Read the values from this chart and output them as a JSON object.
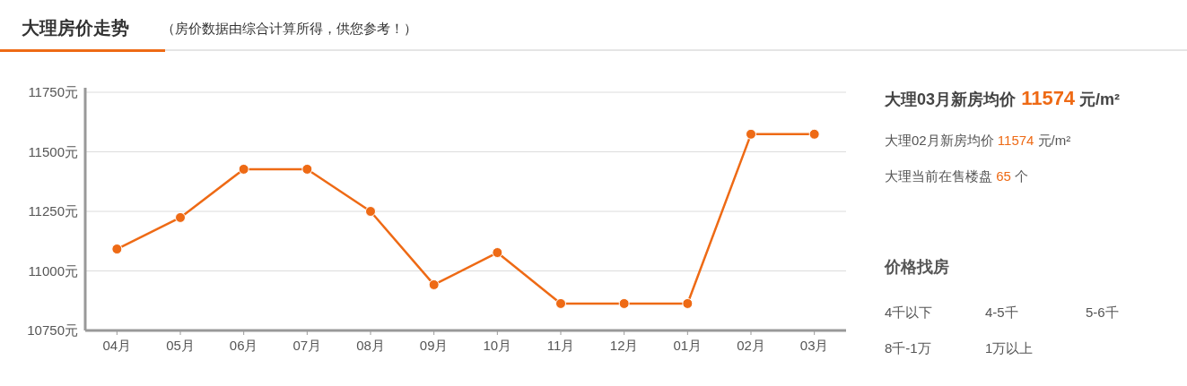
{
  "chart_data": [
    {
      "type": "line",
      "title": "大理房价走势",
      "subtitle": "（房价数据由综合计算所得，供您参考！）",
      "categories": [
        "04月",
        "05月",
        "06月",
        "07月",
        "08月",
        "09月",
        "10月",
        "11月",
        "12月",
        "01月",
        "02月",
        "03月"
      ],
      "series": [
        {
          "color": "#ee6a15",
          "values": [
            11092,
            11224,
            11427,
            11427,
            11250,
            10942,
            11077,
            10863,
            10863,
            10863,
            11574,
            11574
          ]
        }
      ],
      "ylim": [
        10750,
        11750
      ],
      "yticks": [
        {
          "value": 10750,
          "label": "10750元"
        },
        {
          "value": 11000,
          "label": "11000元"
        },
        {
          "value": 11250,
          "label": "11250元"
        },
        {
          "value": 11500,
          "label": "11500元"
        },
        {
          "value": 11750,
          "label": "11750元"
        }
      ],
      "grid": "y",
      "marker": "circle",
      "line_style": "solid"
    },
    {
      "type": "other",
      "annotations": [
        "大理03月新房均价 11574 元/m²",
        "大理02月新房均价 11574 元/m²",
        "大理当前在售楼盘 65 个",
        "价格找房",
        "4千以下",
        "4-5千",
        "5-6千",
        "8千-1万",
        "1万以上"
      ]
    }
  ]
}
